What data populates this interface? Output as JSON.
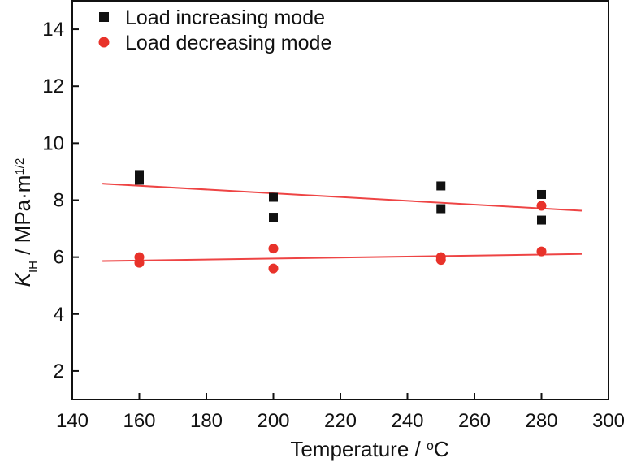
{
  "chart_data": {
    "type": "scatter",
    "title": "",
    "xlabel": {
      "main": "Temperature / ",
      "sup": "o",
      "unit": "C"
    },
    "ylabel": {
      "symbol": "K",
      "symbol_sub": "IH",
      "rest": " / MPa·m",
      "sup": "1/2"
    },
    "xlim": [
      140,
      300
    ],
    "ylim": [
      1,
      15
    ],
    "xticks": [
      140,
      160,
      180,
      200,
      220,
      240,
      260,
      280,
      300
    ],
    "yticks": [
      2,
      4,
      6,
      8,
      10,
      12,
      14
    ],
    "grid": false,
    "legend": "top-left",
    "series": [
      {
        "name": "Load increasing mode",
        "marker": "square",
        "color": "#111111",
        "points": [
          {
            "x": 160,
            "y": 8.9
          },
          {
            "x": 160,
            "y": 8.7
          },
          {
            "x": 200,
            "y": 8.1
          },
          {
            "x": 200,
            "y": 7.4
          },
          {
            "x": 250,
            "y": 8.5
          },
          {
            "x": 250,
            "y": 7.7
          },
          {
            "x": 280,
            "y": 8.2
          },
          {
            "x": 280,
            "y": 7.3
          }
        ],
        "fit": {
          "x": [
            149,
            292
          ],
          "y": [
            8.58,
            7.63
          ],
          "color": "#ee4444"
        }
      },
      {
        "name": "Load decreasing mode",
        "marker": "circle",
        "color": "#e8322a",
        "points": [
          {
            "x": 160,
            "y": 6.0
          },
          {
            "x": 160,
            "y": 5.8
          },
          {
            "x": 200,
            "y": 6.3
          },
          {
            "x": 200,
            "y": 5.6
          },
          {
            "x": 250,
            "y": 6.0
          },
          {
            "x": 250,
            "y": 5.9
          },
          {
            "x": 280,
            "y": 6.2
          },
          {
            "x": 280,
            "y": 7.8
          }
        ],
        "fit": {
          "x": [
            149,
            292
          ],
          "y": [
            5.86,
            6.11
          ],
          "color": "#ee4444"
        }
      }
    ]
  }
}
